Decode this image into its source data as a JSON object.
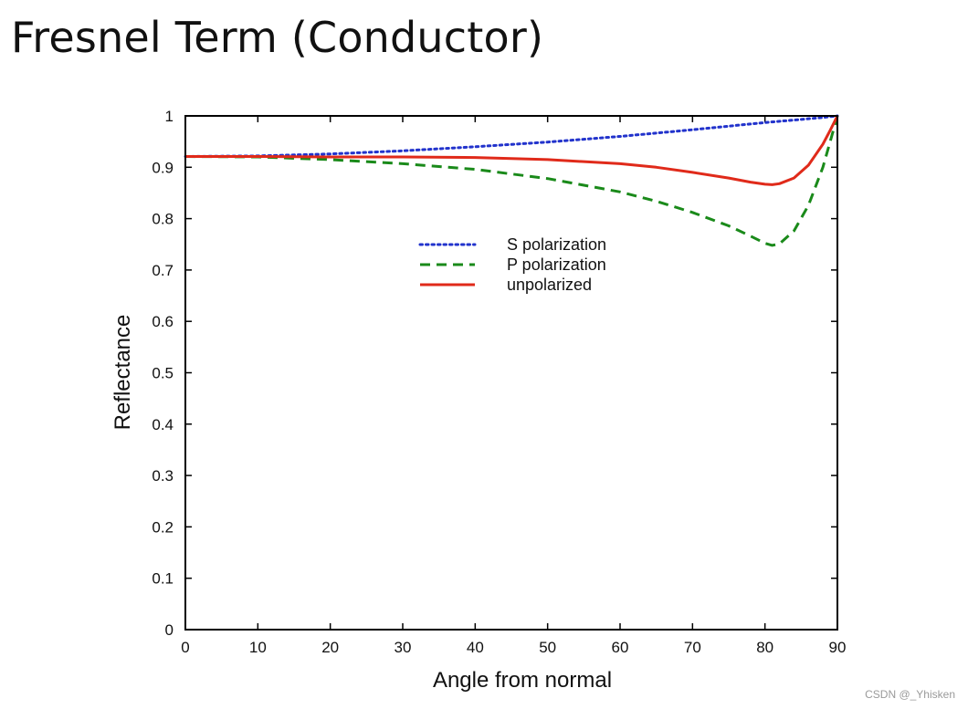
{
  "slide": {
    "title": "Fresnel Term (Conductor)"
  },
  "watermark": "CSDN @_Yhisken",
  "colors": {
    "s_series": "#2233cc",
    "p_series": "#1a8a1a",
    "unpolarized": "#e02a1a",
    "axis": "#000000"
  },
  "chart_data": {
    "type": "line",
    "xlabel": "Angle from normal",
    "ylabel": "Reflectance",
    "xlim": [
      0,
      90
    ],
    "ylim": [
      0,
      1
    ],
    "xticks": [
      0,
      10,
      20,
      30,
      40,
      50,
      60,
      70,
      80,
      90
    ],
    "yticks": [
      0,
      0.1,
      0.2,
      0.3,
      0.4,
      0.5,
      0.6,
      0.7,
      0.8,
      0.9,
      1
    ],
    "ytick_labels": [
      "0",
      "0.1",
      "0.2",
      "0.3",
      "0.4",
      "0.5",
      "0.6",
      "0.7",
      "0.8",
      "0.9",
      "1"
    ],
    "grid": false,
    "legend_position": "center-top",
    "series": [
      {
        "name": "S polarization",
        "style": "dotted",
        "color": "#2233cc",
        "x": [
          0,
          10,
          20,
          30,
          40,
          50,
          60,
          70,
          80,
          85,
          88,
          90
        ],
        "y": [
          0.921,
          0.922,
          0.926,
          0.932,
          0.94,
          0.949,
          0.96,
          0.973,
          0.987,
          0.993,
          0.997,
          1.0
        ]
      },
      {
        "name": "P polarization",
        "style": "dashed",
        "color": "#1a8a1a",
        "x": [
          0,
          10,
          20,
          30,
          40,
          50,
          60,
          65,
          70,
          75,
          78,
          80,
          81,
          82,
          84,
          86,
          88,
          89,
          90
        ],
        "y": [
          0.921,
          0.92,
          0.915,
          0.907,
          0.896,
          0.878,
          0.852,
          0.834,
          0.812,
          0.786,
          0.766,
          0.752,
          0.748,
          0.751,
          0.776,
          0.826,
          0.9,
          0.95,
          1.0
        ]
      },
      {
        "name": "unpolarized",
        "style": "solid",
        "color": "#e02a1a",
        "x": [
          0,
          10,
          20,
          30,
          40,
          50,
          60,
          65,
          70,
          75,
          78,
          80,
          81,
          82,
          84,
          86,
          88,
          89,
          90
        ],
        "y": [
          0.921,
          0.921,
          0.92,
          0.92,
          0.919,
          0.915,
          0.907,
          0.9,
          0.89,
          0.879,
          0.871,
          0.867,
          0.866,
          0.868,
          0.879,
          0.904,
          0.945,
          0.972,
          1.0
        ]
      }
    ]
  }
}
